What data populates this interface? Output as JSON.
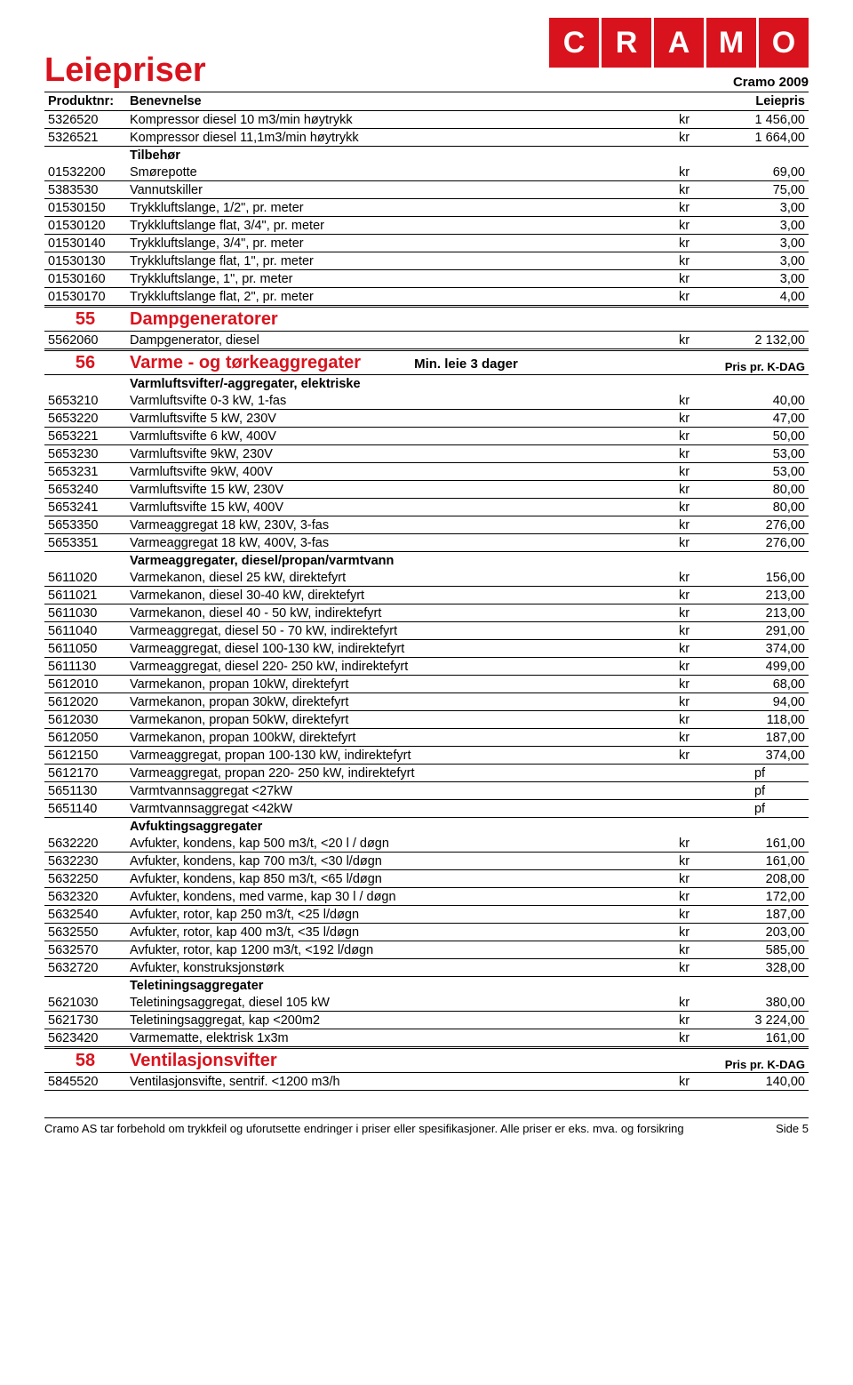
{
  "header": {
    "title": "Leiepriser",
    "logo_letters": [
      "C",
      "R",
      "A",
      "M",
      "O"
    ],
    "year": "Cramo 2009"
  },
  "columns": {
    "c1": "Produktnr:",
    "c2": "Benevnelse",
    "c3": "Leiepris"
  },
  "rows": [
    {
      "t": "d",
      "n": "5326520",
      "d": "Kompressor diesel 10 m3/min høytrykk",
      "kr": "kr",
      "p": "1 456,00",
      "u": true
    },
    {
      "t": "d",
      "n": "5326521",
      "d": "Kompressor diesel 11,1m3/min høytrykk",
      "kr": "kr",
      "p": "1 664,00",
      "u": true
    },
    {
      "t": "sh",
      "d": "Tilbehør"
    },
    {
      "t": "d",
      "n": "01532200",
      "d": "Smørepotte",
      "kr": "kr",
      "p": "69,00",
      "u": true
    },
    {
      "t": "d",
      "n": "5383530",
      "d": "Vannutskiller",
      "kr": "kr",
      "p": "75,00",
      "u": true
    },
    {
      "t": "d",
      "n": "01530150",
      "d": "Trykkluftslange, 1/2\", pr. meter",
      "kr": "kr",
      "p": "3,00",
      "u": true
    },
    {
      "t": "d",
      "n": "01530120",
      "d": "Trykkluftslange flat, 3/4\", pr. meter",
      "kr": "kr",
      "p": "3,00",
      "u": true
    },
    {
      "t": "d",
      "n": "01530140",
      "d": "Trykkluftslange, 3/4\", pr. meter",
      "kr": "kr",
      "p": "3,00",
      "u": true
    },
    {
      "t": "d",
      "n": "01530130",
      "d": "Trykkluftslange flat, 1\", pr. meter",
      "kr": "kr",
      "p": "3,00",
      "u": true
    },
    {
      "t": "d",
      "n": "01530160",
      "d": "Trykkluftslange, 1\", pr. meter",
      "kr": "kr",
      "p": "3,00",
      "u": true
    },
    {
      "t": "d",
      "n": "01530170",
      "d": "Trykkluftslange flat, 2\", pr. meter",
      "kr": "kr",
      "p": "4,00",
      "u": true
    },
    {
      "t": "sec",
      "n": "55",
      "d": "Dampgeneratorer",
      "note": "",
      "pcol": "",
      "dbl": true
    },
    {
      "t": "d",
      "n": "5562060",
      "d": "Dampgenerator, diesel",
      "kr": "kr",
      "p": "2 132,00",
      "u": true
    },
    {
      "t": "sec",
      "n": "56",
      "d": "Varme - og tørkeaggregater",
      "note": "Min. leie 3 dager",
      "pcol": "Pris pr. K-DAG",
      "dbl": true
    },
    {
      "t": "sh",
      "d": "Varmluftsvifter/-aggregater, elektriske"
    },
    {
      "t": "d",
      "n": "5653210",
      "d": "Varmluftsvifte 0-3 kW, 1-fas",
      "kr": "kr",
      "p": "40,00",
      "u": true
    },
    {
      "t": "d",
      "n": "5653220",
      "d": "Varmluftsvifte  5 kW,  230V",
      "kr": "kr",
      "p": "47,00",
      "u": true
    },
    {
      "t": "d",
      "n": "5653221",
      "d": "Varmluftsvifte 6 kW, 400V",
      "kr": "kr",
      "p": "50,00",
      "u": true
    },
    {
      "t": "d",
      "n": "5653230",
      "d": "Varmluftsvifte 9kW,  230V",
      "kr": "kr",
      "p": "53,00",
      "u": true
    },
    {
      "t": "d",
      "n": "5653231",
      "d": "Varmluftsvifte 9kW,  400V",
      "kr": "kr",
      "p": "53,00",
      "u": true
    },
    {
      "t": "d",
      "n": "5653240",
      "d": "Varmluftsvifte 15 kW,  230V",
      "kr": "kr",
      "p": "80,00",
      "u": true
    },
    {
      "t": "d",
      "n": "5653241",
      "d": "Varmluftsvifte 15 kW,  400V",
      "kr": "kr",
      "p": "80,00",
      "u": true
    },
    {
      "t": "d",
      "n": "5653350",
      "d": "Varmeaggregat 18 kW, 230V, 3-fas",
      "kr": "kr",
      "p": "276,00",
      "u": true
    },
    {
      "t": "d",
      "n": "5653351",
      "d": "Varmeaggregat 18 kW, 400V, 3-fas",
      "kr": "kr",
      "p": "276,00",
      "u": true
    },
    {
      "t": "sh",
      "d": "Varmeaggregater, diesel/propan/varmtvann"
    },
    {
      "t": "d",
      "n": "5611020",
      "d": "Varmekanon, diesel  25 kW, direktefyrt",
      "kr": "kr",
      "p": "156,00",
      "u": true
    },
    {
      "t": "d",
      "n": "5611021",
      "d": "Varmekanon, diesel  30-40 kW, direktefyrt",
      "kr": "kr",
      "p": "213,00",
      "u": true
    },
    {
      "t": "d",
      "n": "5611030",
      "d": "Varmekanon, diesel 40 - 50 kW, indirektefyrt",
      "kr": "kr",
      "p": "213,00",
      "u": true
    },
    {
      "t": "d",
      "n": "5611040",
      "d": "Varmeaggregat, diesel 50 - 70 kW, indirektefyrt",
      "kr": "kr",
      "p": "291,00",
      "u": true
    },
    {
      "t": "d",
      "n": "5611050",
      "d": "Varmeaggregat, diesel 100-130 kW, indirektefyrt",
      "kr": "kr",
      "p": "374,00",
      "u": true
    },
    {
      "t": "d",
      "n": "5611130",
      "d": "Varmeaggregat, diesel 220- 250 kW, indirektefyrt",
      "kr": "kr",
      "p": "499,00",
      "u": true
    },
    {
      "t": "d",
      "n": "5612010",
      "d": "Varmekanon, propan 10kW, direktefyrt",
      "kr": "kr",
      "p": "68,00",
      "u": true
    },
    {
      "t": "d",
      "n": "5612020",
      "d": "Varmekanon, propan 30kW, direktefyrt",
      "kr": "kr",
      "p": "94,00",
      "u": true
    },
    {
      "t": "d",
      "n": "5612030",
      "d": "Varmekanon, propan 50kW, direktefyrt",
      "kr": "kr",
      "p": "118,00",
      "u": true
    },
    {
      "t": "d",
      "n": "5612050",
      "d": "Varmekanon, propan 100kW, direktefyrt",
      "kr": "kr",
      "p": "187,00",
      "u": true
    },
    {
      "t": "d",
      "n": "5612150",
      "d": "Varmeaggregat, propan 100-130 kW, indirektefyrt",
      "kr": "kr",
      "p": "374,00",
      "u": true
    },
    {
      "t": "d",
      "n": "5612170",
      "d": "Varmeaggregat, propan 220- 250 kW, indirektefyrt",
      "kr": "",
      "p": "pf",
      "u": true
    },
    {
      "t": "d",
      "n": "5651130",
      "d": "Varmtvannsaggregat <27kW",
      "kr": "",
      "p": "pf",
      "u": true
    },
    {
      "t": "d",
      "n": "5651140",
      "d": "Varmtvannsaggregat <42kW",
      "kr": "",
      "p": "pf",
      "u": true
    },
    {
      "t": "sh",
      "d": "Avfuktingsaggregater"
    },
    {
      "t": "d",
      "n": "5632220",
      "d": "Avfukter, kondens, kap 500 m3/t, <20 l / døgn",
      "kr": "kr",
      "p": "161,00",
      "u": true
    },
    {
      "t": "d",
      "n": "5632230",
      "d": "Avfukter, kondens, kap 700 m3/t, <30 l/døgn",
      "kr": "kr",
      "p": "161,00",
      "u": true
    },
    {
      "t": "d",
      "n": "5632250",
      "d": "Avfukter, kondens, kap 850 m3/t, <65 l/døgn",
      "kr": "kr",
      "p": "208,00",
      "u": true
    },
    {
      "t": "d",
      "n": "5632320",
      "d": "Avfukter, kondens, med varme, kap  30 l / døgn",
      "kr": "kr",
      "p": "172,00",
      "u": true
    },
    {
      "t": "d",
      "n": "5632540",
      "d": "Avfukter, rotor, kap 250 m3/t, <25 l/døgn",
      "kr": "kr",
      "p": "187,00",
      "u": true
    },
    {
      "t": "d",
      "n": "5632550",
      "d": "Avfukter, rotor, kap 400 m3/t, <35 l/døgn",
      "kr": "kr",
      "p": "203,00",
      "u": true
    },
    {
      "t": "d",
      "n": "5632570",
      "d": "Avfukter, rotor, kap 1200 m3/t, <192 l/døgn",
      "kr": "kr",
      "p": "585,00",
      "u": true
    },
    {
      "t": "d",
      "n": "5632720",
      "d": "Avfukter, konstruksjonstørk",
      "kr": "kr",
      "p": "328,00",
      "u": true
    },
    {
      "t": "sh",
      "d": "Teletiningsaggregater"
    },
    {
      "t": "d",
      "n": "5621030",
      "d": "Teletiningsaggregat, diesel 105 kW",
      "kr": "kr",
      "p": "380,00",
      "u": true
    },
    {
      "t": "d",
      "n": "5621730",
      "d": "Teletiningsaggregat, kap <200m2",
      "kr": "kr",
      "p": "3 224,00",
      "u": true
    },
    {
      "t": "d",
      "n": "5623420",
      "d": "Varmematte, elektrisk 1x3m",
      "kr": "kr",
      "p": "161,00",
      "u": true
    },
    {
      "t": "sec",
      "n": "58",
      "d": "Ventilasjonsvifter",
      "note": "",
      "pcol": "Pris pr. K-DAG",
      "dbl": true
    },
    {
      "t": "d",
      "n": "5845520",
      "d": "Ventilasjonsvifte, sentrif. <1200 m3/h",
      "kr": "kr",
      "p": "140,00",
      "u": true
    }
  ],
  "footer": {
    "disclaimer": "Cramo AS tar forbehold om trykkfeil og uforutsette endringer i priser eller spesifikasjoner. Alle priser er eks. mva. og forsikring",
    "page": "Side 5"
  },
  "colors": {
    "accent": "#d8131d",
    "text": "#000000",
    "bg": "#ffffff"
  }
}
